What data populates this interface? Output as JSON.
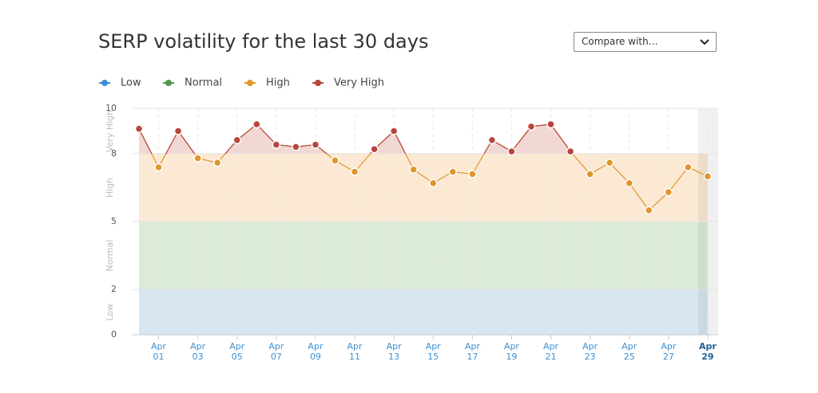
{
  "title": "SERP volatility for the last 30 days",
  "compare_dropdown": "Compare with…",
  "chart_data": {
    "type": "line",
    "categories": [
      null,
      "Apr 01",
      null,
      "Apr 03",
      null,
      "Apr 05",
      null,
      "Apr 07",
      null,
      "Apr 09",
      null,
      "Apr 11",
      null,
      "Apr 13",
      null,
      "Apr 15",
      null,
      "Apr 17",
      null,
      "Apr 19",
      null,
      "Apr 21",
      null,
      "Apr 23",
      null,
      "Apr 25",
      null,
      "Apr 27",
      null,
      "Apr 29"
    ],
    "values": [
      9.1,
      7.4,
      9.0,
      7.8,
      7.6,
      8.6,
      9.3,
      8.4,
      8.3,
      8.4,
      7.7,
      7.2,
      8.2,
      9.0,
      7.3,
      6.7,
      7.2,
      7.1,
      8.6,
      8.1,
      9.2,
      9.3,
      8.1,
      7.1,
      7.6,
      6.7,
      5.5,
      6.3,
      7.4,
      7.0
    ],
    "bands": [
      {
        "name": "Low",
        "color": "#3d8fd1",
        "fill": "#d7e6f1",
        "ylim": [
          0,
          2
        ]
      },
      {
        "name": "Normal",
        "color": "#4d9a4b",
        "fill": "#dcebd8",
        "ylim": [
          2,
          5
        ]
      },
      {
        "name": "High",
        "color": "#e0962b",
        "fill": "#fbe9d4",
        "ylim": [
          5,
          8
        ]
      },
      {
        "name": "Very High",
        "color": "#b6463b",
        "fill": "#f2d8d5",
        "ylim": [
          8,
          10
        ]
      }
    ],
    "ylim": [
      0,
      10
    ],
    "yticks": [
      0,
      2,
      5,
      8,
      10
    ],
    "grid": true
  }
}
